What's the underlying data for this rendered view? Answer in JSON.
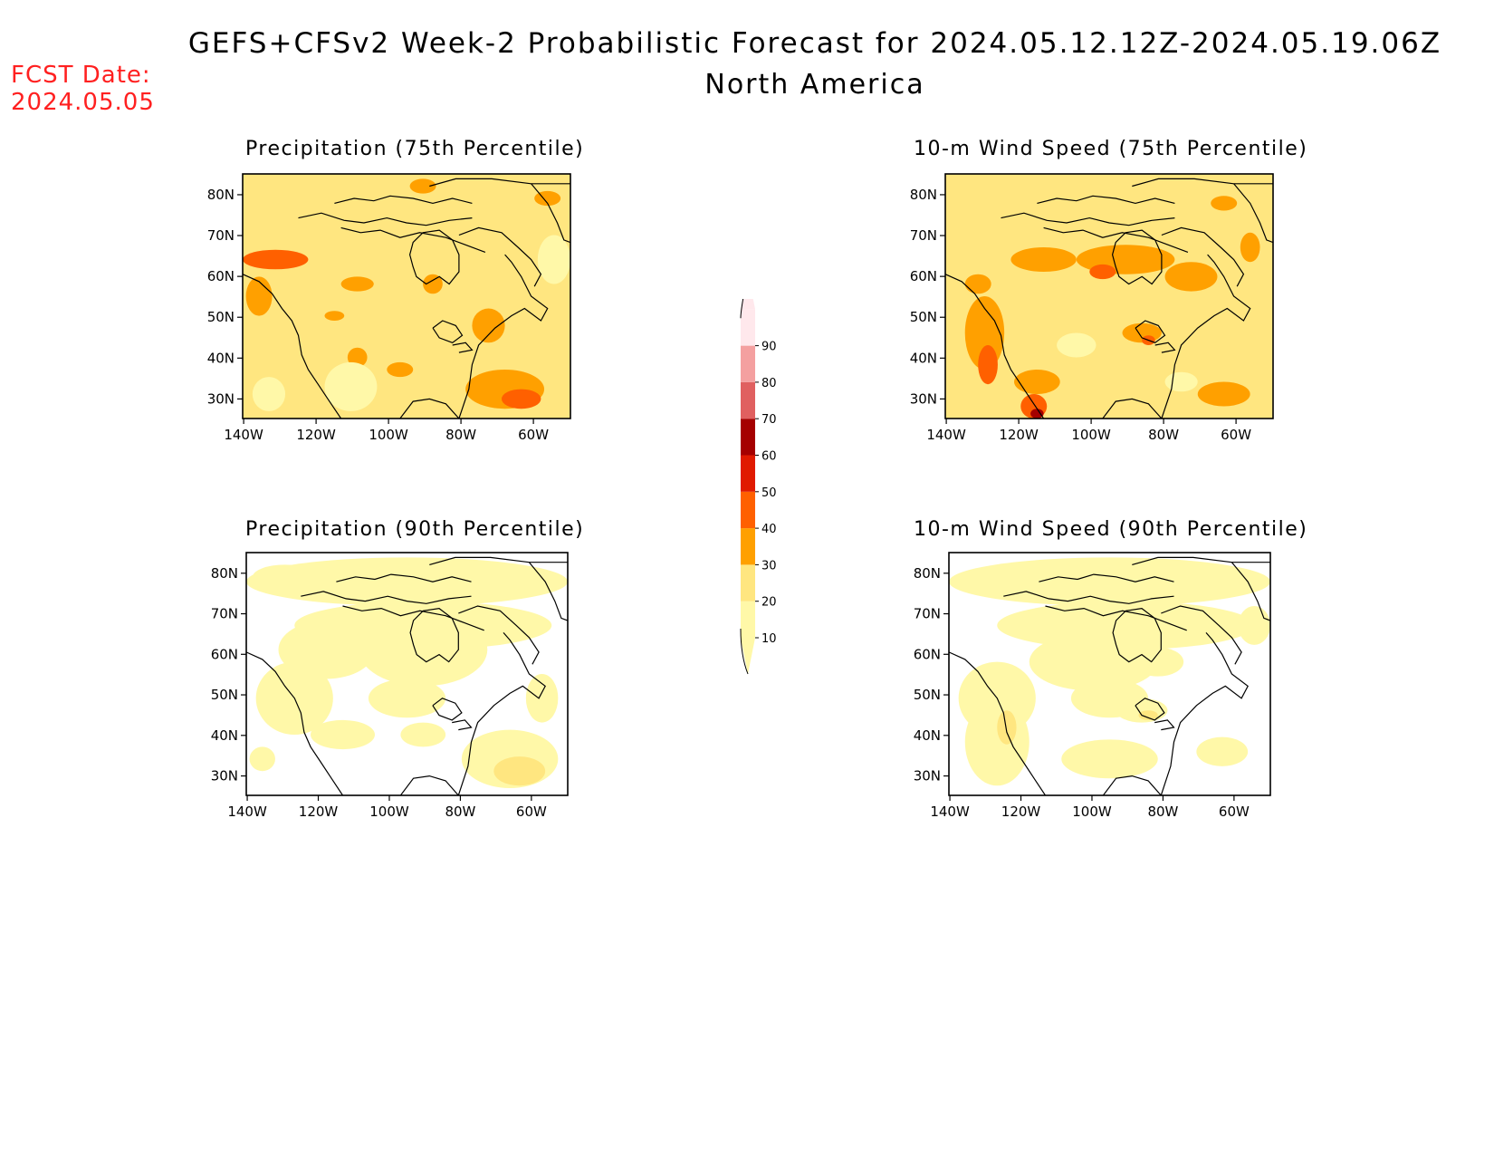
{
  "header": {
    "title": "GEFS+CFSv2 Week-2 Probabilistic Forecast for 2024.05.12.12Z-2024.05.19.06Z",
    "subtitle": "North America",
    "fcst_label": "FCST Date:",
    "fcst_date": "2024.05.05"
  },
  "axes": {
    "lat_labels": [
      "80N",
      "70N",
      "60N",
      "50N",
      "40N",
      "30N"
    ],
    "lon_labels": [
      "140W",
      "120W",
      "100W",
      "80W",
      "60W"
    ]
  },
  "colors": {
    "c10": "#fff8a8",
    "c20": "#ffe680",
    "c30": "#ffa000",
    "c40": "#ff6000",
    "c50": "#e01a00",
    "c60": "#a50000",
    "c70": "#e06060",
    "c80": "#f4a0a0",
    "c90": "#ffe8ec"
  },
  "panels": [
    {
      "id": "precip75",
      "title": "Precipitation (75th Percentile)",
      "base": "c20",
      "coverage": "high"
    },
    {
      "id": "wind75",
      "title": "10-m Wind Speed (75th Percentile)",
      "base": "c20",
      "coverage": "high"
    },
    {
      "id": "precip90",
      "title": "Precipitation (90th Percentile)",
      "base": "c10",
      "coverage": "low"
    },
    {
      "id": "wind90",
      "title": "10-m Wind Speed (90th Percentile)",
      "base": "c10",
      "coverage": "low"
    }
  ],
  "colorbar": {
    "levels": [
      "10",
      "20",
      "30",
      "40",
      "50",
      "60",
      "70",
      "80",
      "90"
    ]
  }
}
